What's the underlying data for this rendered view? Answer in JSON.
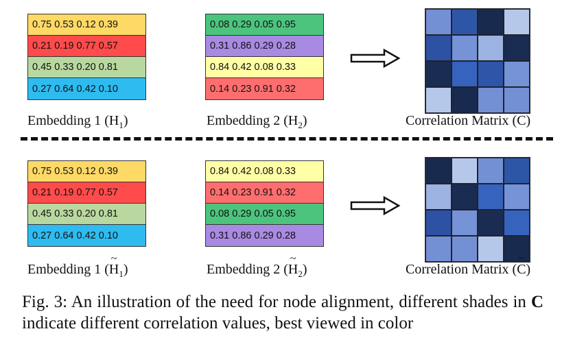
{
  "top": {
    "embedding1": {
      "rows": [
        {
          "text": "0.75 0.53 0.12 0.39",
          "color": "#FFD966"
        },
        {
          "text": "0.21 0.19 0.77 0.57",
          "color": "#FF4B4B"
        },
        {
          "text": "0.45 0.33 0.20 0.81",
          "color": "#B9D8A0"
        },
        {
          "text": "0.27 0.64 0.42 0.10",
          "color": "#2DBBF0"
        }
      ],
      "label_prefix": "Embedding 1 (",
      "label_symbol": "H",
      "label_sub": "1",
      "label_suffix": ")"
    },
    "embedding2": {
      "rows": [
        {
          "text": "0.08 0.29 0.05 0.95",
          "color": "#4CC47E"
        },
        {
          "text": "0.31 0.86 0.29 0.28",
          "color": "#A98AE2"
        },
        {
          "text": "0.84 0.42 0.08 0.33",
          "color": "#FFFFA6"
        },
        {
          "text": "0.14 0.23 0.91 0.32",
          "color": "#FF6E6E"
        }
      ],
      "label_prefix": "Embedding 2 (",
      "label_symbol": "H",
      "label_sub": "2",
      "label_suffix": ")"
    },
    "matrix": {
      "label_prefix": "Correlation Matrix (",
      "label_symbol": "C",
      "label_suffix": ")",
      "cells": [
        "#7490D4",
        "#2E56A6",
        "#192A4F",
        "#B6C8EA",
        "#2D52A4",
        "#7593D6",
        "#9CB2E0",
        "#1A2B52",
        "#1B2C53",
        "#3563BE",
        "#2F55A8",
        "#7593D6",
        "#B6C8EA",
        "#192A4F",
        "#7490D4",
        "#7490D4"
      ]
    }
  },
  "bottom": {
    "embedding1": {
      "rows": [
        {
          "text": "0.75 0.53 0.12 0.39",
          "color": "#FFD966"
        },
        {
          "text": "0.21 0.19 0.77 0.57",
          "color": "#FF4B4B"
        },
        {
          "text": "0.45 0.33 0.20 0.81",
          "color": "#B9D8A0"
        },
        {
          "text": "0.27 0.64 0.42 0.10",
          "color": "#2DBBF0"
        }
      ],
      "label_prefix": "Embedding 1 (",
      "label_symbol": "H",
      "label_sub": "1",
      "label_suffix": ")"
    },
    "embedding2": {
      "rows": [
        {
          "text": "0.84 0.42 0.08 0.33",
          "color": "#FFFFA6"
        },
        {
          "text": "0.14 0.23 0.91 0.32",
          "color": "#FF6E6E"
        },
        {
          "text": "0.08 0.29 0.05 0.95",
          "color": "#4CC47E"
        },
        {
          "text": "0.31 0.86 0.29 0.28",
          "color": "#A98AE2"
        }
      ],
      "label_prefix": "Embedding 2 (",
      "label_symbol": "H",
      "label_sub": "2",
      "label_suffix": ")"
    },
    "matrix": {
      "label_prefix": "Correlation Matrix (",
      "label_symbol": "C",
      "label_suffix": ")",
      "cells": [
        "#192A4F",
        "#B6C8EA",
        "#7490D4",
        "#2E56A6",
        "#9CB2E0",
        "#1A2B52",
        "#3563BE",
        "#7593D6",
        "#2D52A4",
        "#7593D6",
        "#1B2C53",
        "#3563BE",
        "#7490D4",
        "#7490D4",
        "#B6C8EA",
        "#192A4F"
      ]
    }
  },
  "caption": {
    "prefix": "Fig. 3: An illustration of the need for node alignment, different shades in ",
    "bold": "C",
    "suffix": " indicate different correlation values, best viewed in color"
  }
}
